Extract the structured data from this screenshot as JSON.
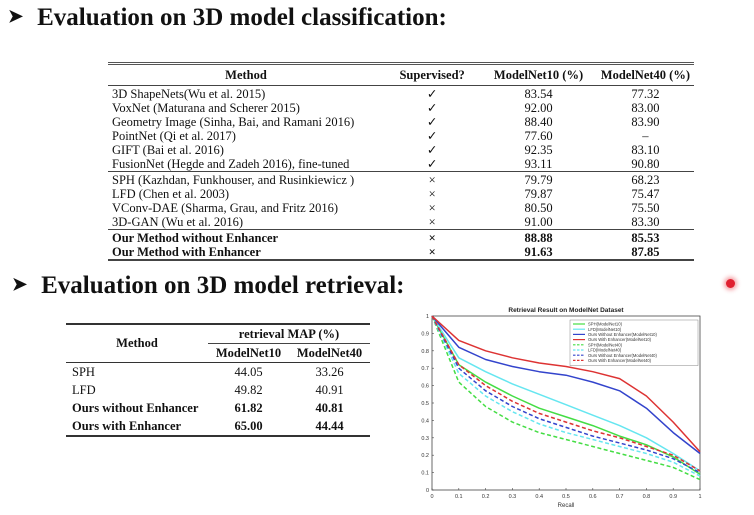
{
  "section1": {
    "arrow": "➤",
    "title": "Evaluation on 3D model classification:",
    "headers": [
      "Method",
      "Supervised?",
      "ModelNet10 (%)",
      "ModelNet40 (%)"
    ],
    "groups": [
      [
        {
          "method": "3D ShapeNets(Wu et al. 2015)",
          "sup": "✓",
          "m10": "83.54",
          "m40": "77.32"
        },
        {
          "method": "VoxNet (Maturana and Scherer 2015)",
          "sup": "✓",
          "m10": "92.00",
          "m40": "83.00"
        },
        {
          "method": "Geometry Image (Sinha, Bai, and Ramani 2016)",
          "sup": "✓",
          "m10": "88.40",
          "m40": "83.90"
        },
        {
          "method": "PointNet (Qi et al. 2017)",
          "sup": "✓",
          "m10": "77.60",
          "m40": "–"
        },
        {
          "method": "GIFT (Bai et al. 2016)",
          "sup": "✓",
          "m10": "92.35",
          "m40": "83.10"
        },
        {
          "method": "FusionNet (Hegde and Zadeh 2016), fine-tuned",
          "sup": "✓",
          "m10": "93.11",
          "m40": "90.80"
        }
      ],
      [
        {
          "method": "SPH (Kazhdan, Funkhouser, and Rusinkiewicz )",
          "sup": "×",
          "m10": "79.79",
          "m40": "68.23"
        },
        {
          "method": "LFD (Chen et al. 2003)",
          "sup": "×",
          "m10": "79.87",
          "m40": "75.47"
        },
        {
          "method": "VConv-DAE (Sharma, Grau, and Fritz 2016)",
          "sup": "×",
          "m10": "80.50",
          "m40": "75.50"
        },
        {
          "method": "3D-GAN (Wu et al. 2016)",
          "sup": "×",
          "m10": "91.00",
          "m40": "83.30"
        }
      ],
      [
        {
          "method": "Our Method without Enhancer",
          "sup": "×",
          "m10": "88.88",
          "m40": "85.53",
          "bold": true
        },
        {
          "method": "Our Method with Enhancer",
          "sup": "×",
          "m10": "91.63",
          "m40": "87.85",
          "bold": true
        }
      ]
    ]
  },
  "section2": {
    "arrow": "➤",
    "title": "Evaluation on 3D model retrieval:",
    "method_header": "Method",
    "group_header": "retrieval MAP (%)",
    "col_headers": [
      "ModelNet10",
      "ModelNet40"
    ],
    "rows": [
      {
        "method": "SPH",
        "m10": "44.05",
        "m40": "33.26"
      },
      {
        "method": "LFD",
        "m10": "49.82",
        "m40": "40.91"
      },
      {
        "method": "Ours without Enhancer",
        "m10": "61.82",
        "m40": "40.81",
        "bold": true
      },
      {
        "method": "Ours with Enhancer",
        "m10": "65.00",
        "m40": "44.44",
        "bold": true
      }
    ]
  },
  "chart_data": {
    "type": "line",
    "title": "Retrieval Result on ModelNet Dataset",
    "xlabel": "Recall",
    "ylabel": "",
    "xlim": [
      0,
      1
    ],
    "ylim": [
      0,
      1
    ],
    "xticks": [
      "0",
      "0.1",
      "0.2",
      "0.3",
      "0.4",
      "0.5",
      "0.6",
      "0.7",
      "0.8",
      "0.9",
      "1"
    ],
    "yticks": [
      "0",
      "0.1",
      "0.2",
      "0.3",
      "0.4",
      "0.5",
      "0.6",
      "0.7",
      "0.8",
      "0.9",
      "1"
    ],
    "grid": false,
    "legend": "top-right",
    "x": [
      0,
      0.1,
      0.2,
      0.3,
      0.4,
      0.5,
      0.6,
      0.7,
      0.8,
      0.9,
      1.0
    ],
    "series": [
      {
        "name": "SPH(ModelNet10)",
        "color": "#44dd44",
        "dash": false,
        "values": [
          1.0,
          0.72,
          0.62,
          0.54,
          0.47,
          0.42,
          0.37,
          0.31,
          0.26,
          0.19,
          0.09
        ]
      },
      {
        "name": "LFD(ModelNet10)",
        "color": "#66e6f0",
        "dash": false,
        "values": [
          1.0,
          0.76,
          0.68,
          0.61,
          0.55,
          0.49,
          0.43,
          0.37,
          0.3,
          0.21,
          0.11
        ]
      },
      {
        "name": "Ours Without Enhancer(ModelNet10)",
        "color": "#3344cc",
        "dash": false,
        "values": [
          1.0,
          0.82,
          0.75,
          0.71,
          0.68,
          0.66,
          0.62,
          0.57,
          0.47,
          0.33,
          0.21
        ]
      },
      {
        "name": "Ours With Enhancer(ModelNet10)",
        "color": "#dd3333",
        "dash": false,
        "values": [
          1.0,
          0.86,
          0.8,
          0.76,
          0.73,
          0.71,
          0.68,
          0.64,
          0.54,
          0.39,
          0.22
        ]
      },
      {
        "name": "SPH(ModelNet40)",
        "color": "#44dd44",
        "dash": true,
        "values": [
          1.0,
          0.62,
          0.48,
          0.39,
          0.33,
          0.29,
          0.25,
          0.21,
          0.17,
          0.13,
          0.06
        ]
      },
      {
        "name": "LFD(ModelNet40)",
        "color": "#66e6f0",
        "dash": true,
        "values": [
          1.0,
          0.67,
          0.54,
          0.45,
          0.38,
          0.33,
          0.29,
          0.25,
          0.21,
          0.16,
          0.08
        ]
      },
      {
        "name": "Ours Without Enhancer(ModelNet40)",
        "color": "#3344cc",
        "dash": true,
        "values": [
          1.0,
          0.7,
          0.57,
          0.48,
          0.41,
          0.36,
          0.31,
          0.27,
          0.23,
          0.18,
          0.1
        ]
      },
      {
        "name": "Ours With Enhancer(ModelNet40)",
        "color": "#dd3333",
        "dash": true,
        "values": [
          1.0,
          0.72,
          0.6,
          0.51,
          0.44,
          0.39,
          0.34,
          0.3,
          0.25,
          0.2,
          0.11
        ]
      }
    ]
  }
}
